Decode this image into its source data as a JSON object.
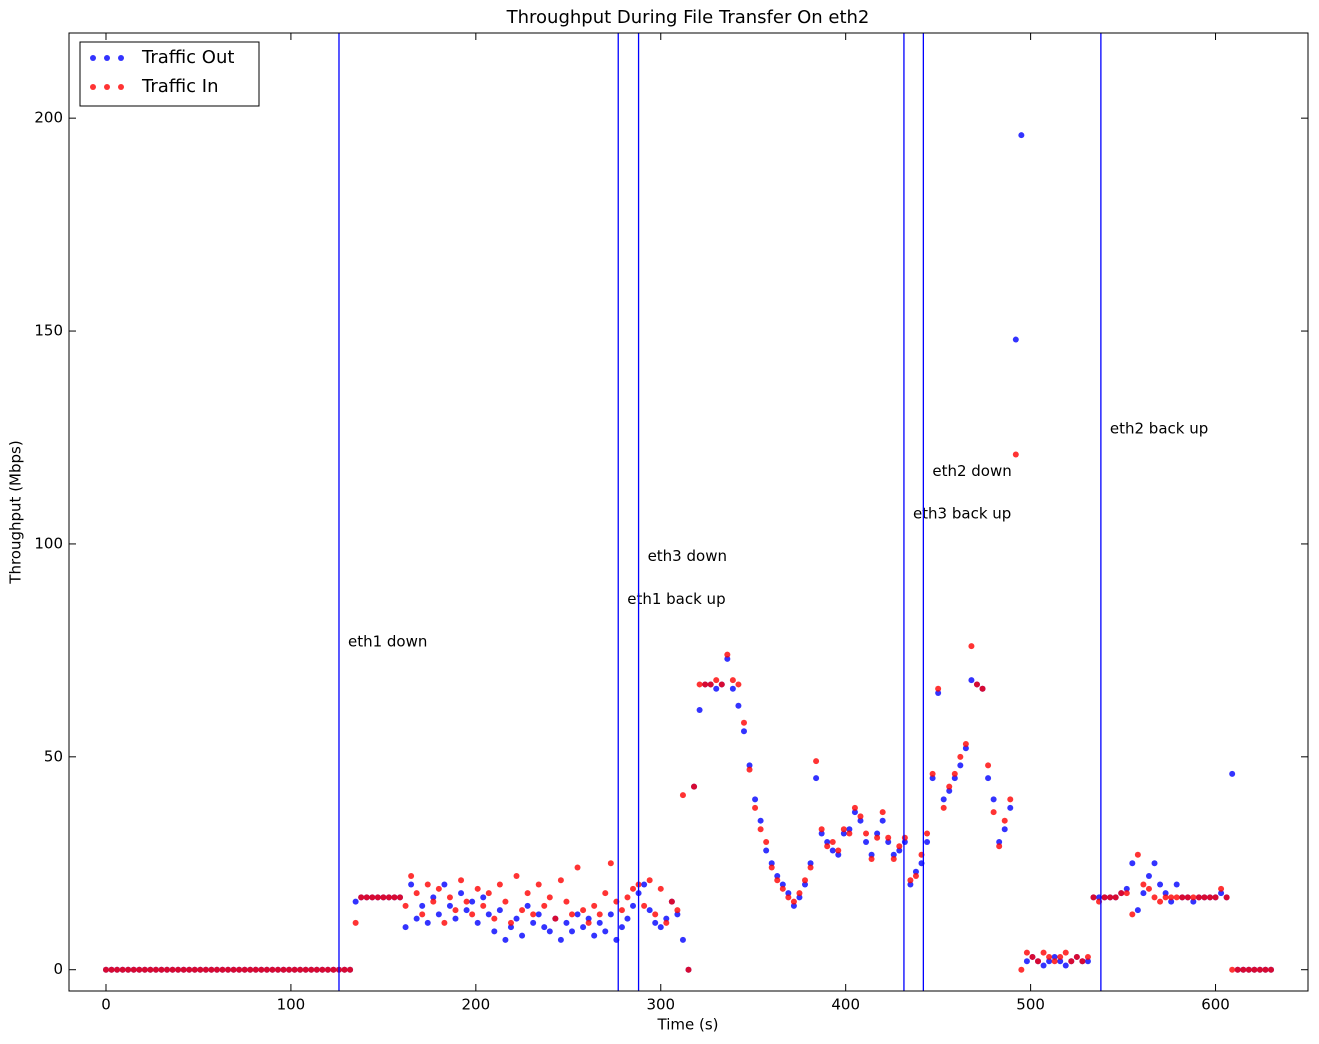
{
  "chart_data": {
    "type": "scatter",
    "title": "Throughput During File Transfer On eth2",
    "x_label": "Time (s)",
    "y_label": "Throughput (Mbps)",
    "xlim": [
      -20,
      650
    ],
    "ylim": [
      -5,
      220
    ],
    "xticks": [
      0,
      100,
      200,
      300,
      400,
      500,
      600
    ],
    "yticks": [
      0,
      50,
      100,
      150,
      200
    ],
    "legend": "upper left",
    "vline_color": "#0000ff",
    "vlines": [
      {
        "x": 126,
        "label": "eth1 down",
        "label_y": 77
      },
      {
        "x": 277,
        "label": "eth1 back up",
        "label_y": 87
      },
      {
        "x": 288,
        "label": "eth3 down",
        "label_y": 97
      },
      {
        "x": 431.5,
        "label": "eth3 back up",
        "label_y": 107
      },
      {
        "x": 442,
        "label": "eth2 down",
        "label_y": 117
      },
      {
        "x": 538,
        "label": "eth2 back up",
        "label_y": 127
      }
    ],
    "x": [
      0,
      3,
      6,
      9,
      12,
      15,
      18,
      21,
      24,
      27,
      30,
      33,
      36,
      39,
      42,
      45,
      48,
      51,
      54,
      57,
      60,
      63,
      66,
      69,
      72,
      75,
      78,
      81,
      84,
      87,
      90,
      93,
      96,
      99,
      102,
      105,
      108,
      111,
      114,
      117,
      120,
      123,
      126,
      129,
      132,
      135,
      138,
      141,
      144,
      147,
      150,
      153,
      156,
      159,
      162,
      165,
      168,
      171,
      174,
      177,
      180,
      183,
      186,
      189,
      192,
      195,
      198,
      201,
      204,
      207,
      210,
      213,
      216,
      219,
      222,
      225,
      228,
      231,
      234,
      237,
      240,
      243,
      246,
      249,
      252,
      255,
      258,
      261,
      264,
      267,
      270,
      273,
      276,
      279,
      282,
      285,
      288,
      291,
      294,
      297,
      300,
      303,
      306,
      309,
      312,
      315,
      318,
      321,
      324,
      327,
      330,
      333,
      336,
      339,
      342,
      345,
      348,
      351,
      354,
      357,
      360,
      363,
      366,
      369,
      372,
      375,
      378,
      381,
      384,
      387,
      390,
      393,
      396,
      399,
      402,
      405,
      408,
      411,
      414,
      417,
      420,
      423,
      426,
      429,
      432,
      435,
      438,
      441,
      444,
      447,
      450,
      453,
      456,
      459,
      462,
      465,
      468,
      471,
      474,
      477,
      480,
      483,
      486,
      489,
      492,
      495,
      498,
      501,
      504,
      507,
      510,
      513,
      516,
      519,
      522,
      525,
      528,
      531,
      534,
      537,
      540,
      543,
      546,
      549,
      552,
      555,
      558,
      561,
      564,
      567,
      570,
      573,
      576,
      579,
      582,
      585,
      588,
      591,
      594,
      597,
      600,
      603,
      606,
      609,
      612,
      615,
      618,
      621,
      624,
      627,
      630
    ],
    "series": [
      {
        "name": "Traffic Out",
        "color": "#0000ff",
        "values": [
          0,
          0,
          0,
          0,
          0,
          0,
          0,
          0,
          0,
          0,
          0,
          0,
          0,
          0,
          0,
          0,
          0,
          0,
          0,
          0,
          0,
          0,
          0,
          0,
          0,
          0,
          0,
          0,
          0,
          0,
          0,
          0,
          0,
          0,
          0,
          0,
          0,
          0,
          0,
          0,
          0,
          0,
          0,
          0,
          0,
          16,
          17,
          17,
          17,
          17,
          17,
          17,
          17,
          17,
          10,
          20,
          12,
          15,
          11,
          17,
          13,
          20,
          15,
          12,
          18,
          14,
          16,
          11,
          17,
          13,
          9,
          14,
          7,
          10,
          12,
          8,
          15,
          11,
          13,
          10,
          9,
          12,
          7,
          11,
          9,
          13,
          10,
          12,
          8,
          11,
          9,
          13,
          7,
          10,
          12,
          15,
          18,
          20,
          14,
          11,
          10,
          12,
          16,
          13,
          7,
          0,
          43,
          61,
          67,
          67,
          66,
          67,
          73,
          66,
          62,
          56,
          48,
          40,
          35,
          28,
          25,
          22,
          20,
          18,
          15,
          17,
          20,
          25,
          45,
          32,
          30,
          28,
          27,
          32,
          33,
          37,
          35,
          30,
          27,
          32,
          35,
          30,
          27,
          28,
          30,
          20,
          23,
          25,
          30,
          45,
          65,
          40,
          42,
          45,
          48,
          52,
          68,
          67,
          66,
          45,
          40,
          30,
          33,
          38,
          148,
          196,
          2,
          3,
          2,
          1,
          2,
          3,
          2,
          1,
          2,
          3,
          2,
          2,
          17,
          17,
          17,
          17,
          17,
          18,
          19,
          25,
          14,
          18,
          22,
          25,
          20,
          18,
          16,
          20,
          17,
          17,
          16,
          17,
          17,
          17,
          17,
          18,
          17,
          46,
          0,
          0,
          0,
          0,
          0,
          0,
          0
        ]
      },
      {
        "name": "Traffic In",
        "color": "#ff0000",
        "values": [
          0,
          0,
          0,
          0,
          0,
          0,
          0,
          0,
          0,
          0,
          0,
          0,
          0,
          0,
          0,
          0,
          0,
          0,
          0,
          0,
          0,
          0,
          0,
          0,
          0,
          0,
          0,
          0,
          0,
          0,
          0,
          0,
          0,
          0,
          0,
          0,
          0,
          0,
          0,
          0,
          0,
          0,
          0,
          0,
          0,
          11,
          17,
          17,
          17,
          17,
          17,
          17,
          17,
          17,
          15,
          22,
          18,
          13,
          20,
          16,
          19,
          11,
          17,
          14,
          21,
          16,
          13,
          19,
          15,
          18,
          12,
          20,
          16,
          11,
          22,
          14,
          18,
          13,
          20,
          15,
          17,
          12,
          21,
          16,
          13,
          24,
          14,
          11,
          15,
          13,
          18,
          25,
          16,
          14,
          17,
          19,
          20,
          15,
          21,
          13,
          19,
          11,
          16,
          14,
          41,
          0,
          43,
          67,
          67,
          67,
          68,
          67,
          74,
          68,
          67,
          58,
          47,
          38,
          33,
          30,
          24,
          21,
          19,
          17,
          16,
          18,
          21,
          24,
          49,
          33,
          29,
          30,
          28,
          33,
          32,
          38,
          36,
          32,
          26,
          31,
          37,
          31,
          26,
          29,
          31,
          21,
          22,
          27,
          32,
          46,
          66,
          38,
          43,
          46,
          50,
          53,
          76,
          67,
          66,
          48,
          37,
          29,
          35,
          40,
          121,
          0,
          4,
          3,
          2,
          4,
          3,
          2,
          3,
          4,
          2,
          3,
          2,
          3,
          17,
          16,
          17,
          17,
          17,
          18,
          18,
          13,
          27,
          20,
          19,
          17,
          16,
          17,
          17,
          17,
          17,
          17,
          17,
          17,
          17,
          17,
          17,
          19,
          17,
          0,
          0,
          0,
          0,
          0,
          0,
          0,
          0
        ]
      }
    ]
  }
}
